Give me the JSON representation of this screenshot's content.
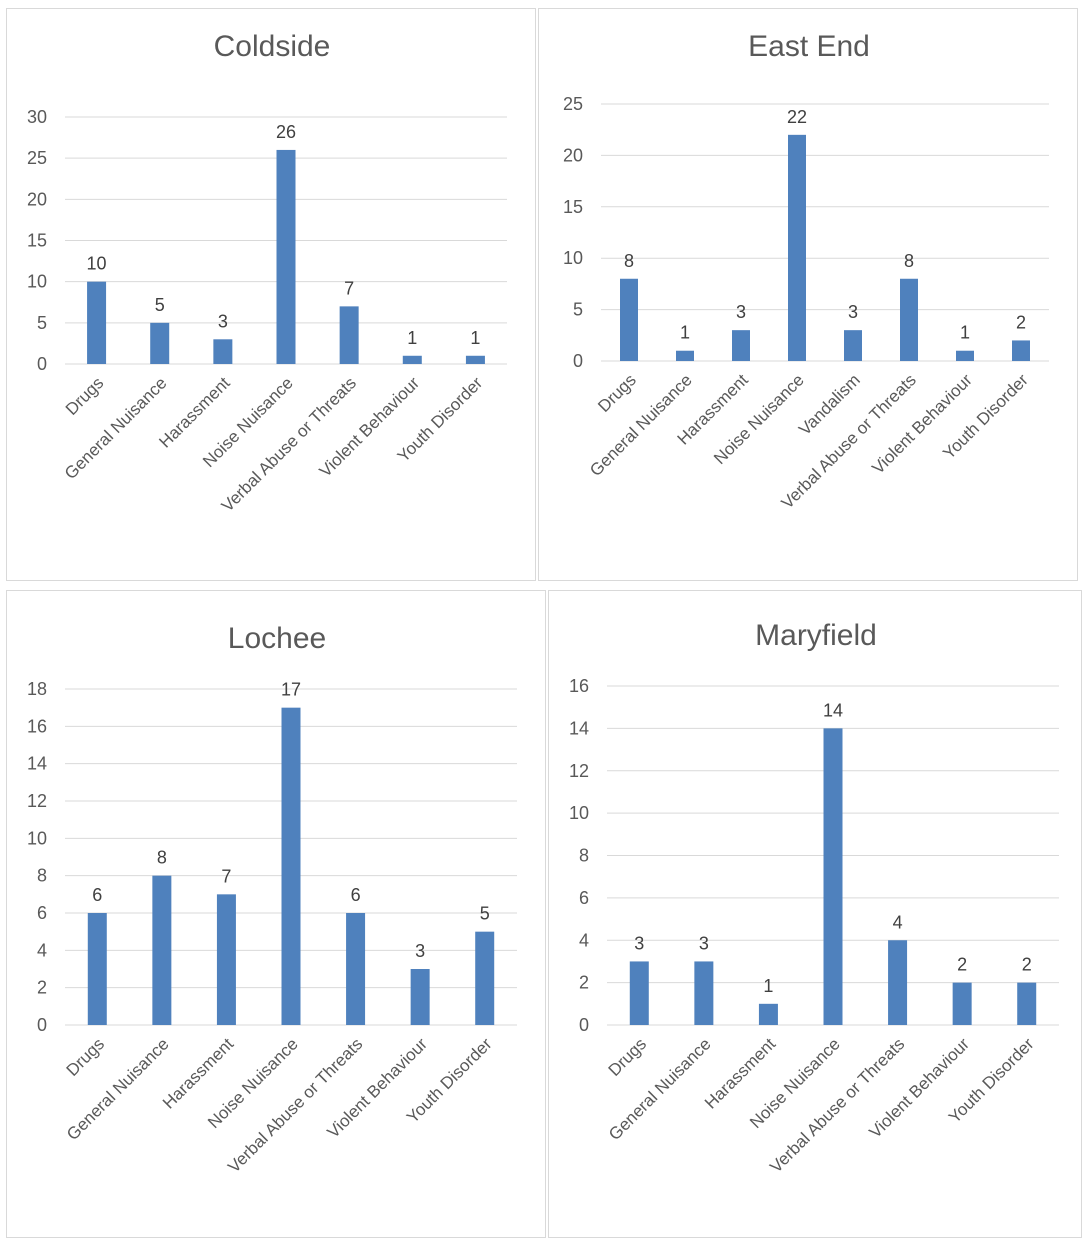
{
  "colors": {
    "bar": "#4f81bd",
    "grid": "#d9d9d9",
    "text": "#595959",
    "border": "#d9d9d9"
  },
  "chart_data": [
    {
      "type": "bar",
      "title": "Coldside",
      "categories": [
        "Drugs",
        "General Nuisance",
        "Harassment",
        "Noise Nuisance",
        "Verbal Abuse or Threats",
        "Violent Behaviour",
        "Youth Disorder"
      ],
      "values": [
        10,
        5,
        3,
        26,
        7,
        1,
        1
      ],
      "ylim": [
        0,
        30
      ],
      "yticks": [
        "0",
        "5",
        "10",
        "15",
        "20",
        "25",
        "30"
      ],
      "grid": true,
      "legend": "none"
    },
    {
      "type": "bar",
      "title": "East End",
      "categories": [
        "Drugs",
        "General Nuisance",
        "Harassment",
        "Noise Nuisance",
        "Vandalism",
        "Verbal Abuse or Threats",
        "Violent Behaviour",
        "Youth Disorder"
      ],
      "values": [
        8,
        1,
        3,
        22,
        3,
        8,
        1,
        2
      ],
      "ylim": [
        0,
        25
      ],
      "yticks": [
        "0",
        "5",
        "10",
        "15",
        "20",
        "25"
      ],
      "grid": true,
      "legend": "none"
    },
    {
      "type": "bar",
      "title": "Lochee",
      "categories": [
        "Drugs",
        "General Nuisance",
        "Harassment",
        "Noise Nuisance",
        "Verbal Abuse or Threats",
        "Violent Behaviour",
        "Youth Disorder"
      ],
      "values": [
        6,
        8,
        7,
        17,
        6,
        3,
        5
      ],
      "ylim": [
        0,
        18
      ],
      "yticks": [
        "0",
        "2",
        "4",
        "6",
        "8",
        "10",
        "12",
        "14",
        "16",
        "18"
      ],
      "grid": true,
      "legend": "none"
    },
    {
      "type": "bar",
      "title": "Maryfield",
      "categories": [
        "Drugs",
        "General Nuisance",
        "Harassment",
        "Noise Nuisance",
        "Verbal Abuse or Threats",
        "Violent Behaviour",
        "Youth Disorder"
      ],
      "values": [
        3,
        3,
        1,
        14,
        4,
        2,
        2
      ],
      "ylim": [
        0,
        16
      ],
      "yticks": [
        "0",
        "2",
        "4",
        "6",
        "8",
        "10",
        "12",
        "14",
        "16"
      ],
      "grid": true,
      "legend": "none"
    }
  ]
}
